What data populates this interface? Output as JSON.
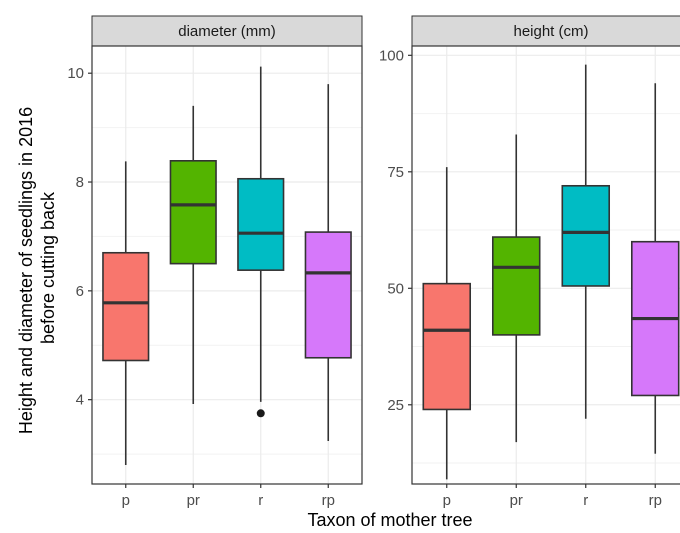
{
  "chart_data": {
    "type": "boxplot",
    "xlabel": "Taxon of mother tree",
    "ylabel_lines": [
      "Height and diameter of seedlings in 2016",
      "before cutting back"
    ],
    "categories": [
      "p",
      "pr",
      "r",
      "rp"
    ],
    "colors": {
      "p": "#F8766D",
      "pr": "#53B400",
      "r": "#00BCC4",
      "rp": "#D678FA"
    },
    "grid": true,
    "legend": "none",
    "panels": [
      {
        "strip": "diameter (mm)",
        "ylim": [
          2.45,
          10.5
        ],
        "yticks": [
          4,
          6,
          8,
          10
        ],
        "yminor": [
          3,
          5,
          7,
          9
        ],
        "yticklabels": [
          "4",
          "6",
          "8",
          "10"
        ],
        "boxes": [
          {
            "cat": "p",
            "min": 2.8,
            "q1": 4.72,
            "median": 5.78,
            "q3": 6.7,
            "max": 8.38,
            "outliers": []
          },
          {
            "cat": "pr",
            "min": 3.92,
            "q1": 6.5,
            "median": 7.58,
            "q3": 8.39,
            "max": 9.4,
            "outliers": []
          },
          {
            "cat": "r",
            "min": 3.96,
            "q1": 6.38,
            "median": 7.06,
            "q3": 8.06,
            "max": 10.12,
            "outliers": [
              3.75
            ]
          },
          {
            "cat": "rp",
            "min": 3.24,
            "q1": 4.77,
            "median": 6.33,
            "q3": 7.08,
            "max": 9.8,
            "outliers": []
          }
        ]
      },
      {
        "strip": "height (cm)",
        "ylim": [
          8,
          102
        ],
        "yticks": [
          25,
          50,
          75,
          100
        ],
        "yminor": [
          12.5,
          37.5,
          62.5,
          87.5
        ],
        "yticklabels": [
          "25",
          "50",
          "75",
          "100"
        ],
        "boxes": [
          {
            "cat": "p",
            "min": 9,
            "q1": 24,
            "median": 41,
            "q3": 51,
            "max": 76,
            "outliers": []
          },
          {
            "cat": "pr",
            "min": 17,
            "q1": 40,
            "median": 54.5,
            "q3": 61,
            "max": 83,
            "outliers": []
          },
          {
            "cat": "r",
            "min": 22,
            "q1": 50.5,
            "median": 62,
            "q3": 72,
            "max": 98,
            "outliers": []
          },
          {
            "cat": "rp",
            "min": 14.5,
            "q1": 27,
            "median": 43.5,
            "q3": 60,
            "max": 94,
            "outliers": []
          }
        ]
      }
    ]
  }
}
